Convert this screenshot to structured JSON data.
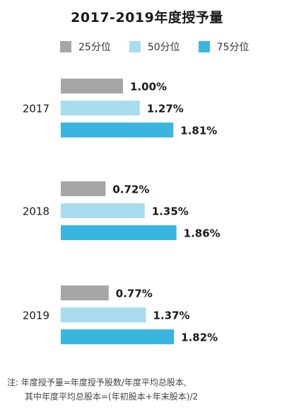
{
  "chart_data": {
    "type": "bar",
    "orientation": "horizontal",
    "title": "2017-2019年度授予量",
    "categories": [
      "2017",
      "2018",
      "2019"
    ],
    "series": [
      {
        "name": "25分位",
        "color": "#a6a6a6",
        "values": [
          1.0,
          0.72,
          0.77
        ],
        "labels": [
          "1.00%",
          "0.72%",
          "0.77%"
        ]
      },
      {
        "name": "50分位",
        "color": "#a8dcef",
        "values": [
          1.27,
          1.35,
          1.37
        ],
        "labels": [
          "1.27%",
          "1.35%",
          "1.37%"
        ]
      },
      {
        "name": "75分位",
        "color": "#3ab5e0",
        "values": [
          1.81,
          1.86,
          1.82
        ],
        "labels": [
          "1.81%",
          "1.86%",
          "1.82%"
        ]
      }
    ],
    "unit": "%",
    "legend_position": "top",
    "grid": false
  },
  "note": {
    "prefix": "注:",
    "line1": "年度授予量=年度授予股数/年度平均总股本,",
    "line2": "其中年度平均总股本=(年初股本+年末股本)/2"
  }
}
